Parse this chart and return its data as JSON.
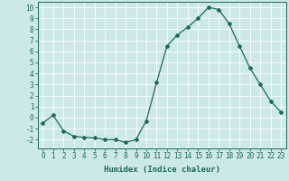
{
  "x": [
    0,
    1,
    2,
    3,
    4,
    5,
    6,
    7,
    8,
    9,
    10,
    11,
    12,
    13,
    14,
    15,
    16,
    17,
    18,
    19,
    20,
    21,
    22,
    23
  ],
  "y": [
    -0.5,
    0.2,
    -1.2,
    -1.7,
    -1.8,
    -1.85,
    -2.0,
    -2.0,
    -2.25,
    -2.0,
    -0.3,
    3.2,
    6.5,
    7.5,
    8.2,
    9.0,
    10.0,
    9.8,
    8.5,
    6.5,
    4.5,
    3.0,
    1.5,
    0.5
  ],
  "ylim": [
    -2.8,
    10.5
  ],
  "xlim": [
    -0.5,
    23.5
  ],
  "yticks": [
    -2,
    -1,
    0,
    1,
    2,
    3,
    4,
    5,
    6,
    7,
    8,
    9,
    10
  ],
  "xticks": [
    0,
    1,
    2,
    3,
    4,
    5,
    6,
    7,
    8,
    9,
    10,
    11,
    12,
    13,
    14,
    15,
    16,
    17,
    18,
    19,
    20,
    21,
    22,
    23
  ],
  "xlabel": "Humidex (Indice chaleur)",
  "line_color": "#1a6b5a",
  "marker": "D",
  "marker_size": 2.0,
  "bg_color": "#cce8e8",
  "grid_color": "#ffffff",
  "label_color": "#1a6b5a",
  "tick_color": "#1a6b5a",
  "spine_color": "#1a6b5a",
  "xlabel_fontsize": 6.5,
  "tick_fontsize": 5.5
}
